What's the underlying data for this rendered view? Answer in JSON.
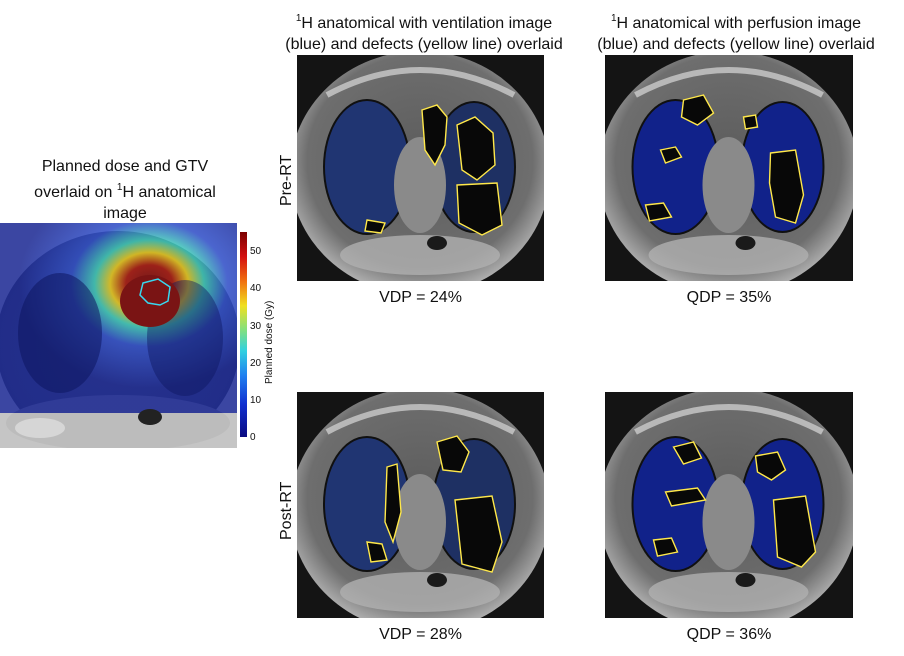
{
  "headers": {
    "ventilation_line1": "H anatomical with ventilation image",
    "ventilation_line2": "(blue) and defects (yellow line) overlaid",
    "perfusion_line1": "H anatomical with perfusion image",
    "perfusion_line2": "(blue) and defects (yellow line) overlaid",
    "superscript": "1"
  },
  "dose_panel": {
    "title_line1": "Planned dose and GTV",
    "title_line2_pre": "overlaid on ",
    "title_line2_sup": "1",
    "title_line2_post": "H anatomical",
    "title_line3": "image",
    "colorbar_label": "Planned dose (Gy)",
    "colorbar_ticks": [
      "50",
      "40",
      "30",
      "20",
      "10",
      "0"
    ]
  },
  "rows": {
    "pre": "Pre-RT",
    "post": "Post-RT"
  },
  "metrics": {
    "pre_vdp": "VDP = 24%",
    "pre_qdp": "QDP = 35%",
    "post_vdp": "VDP = 28%",
    "post_qdp": "QDP = 36%"
  },
  "colors": {
    "ventilation_overlay": "#2a4aa8",
    "perfusion_overlay": "#1226a0",
    "defect_outline": "#ffe84a",
    "gtv_outline": "#38d8f0"
  }
}
